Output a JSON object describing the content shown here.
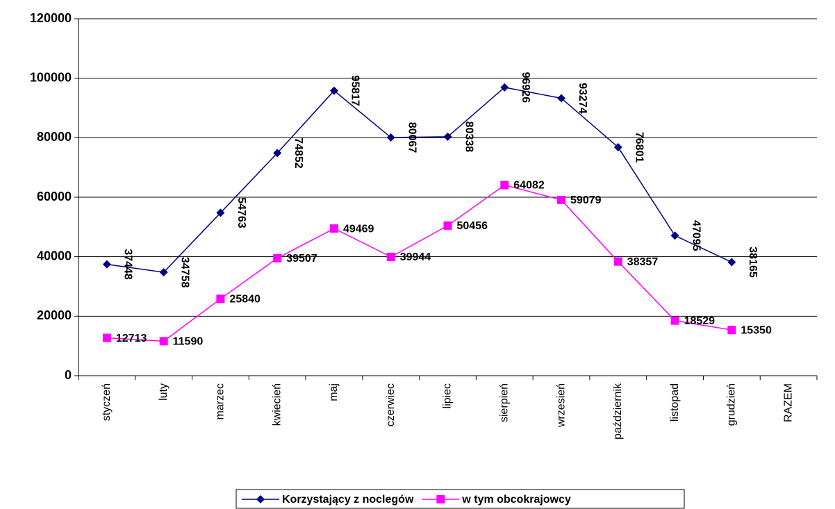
{
  "chart_data": {
    "type": "line",
    "categories": [
      "styczeń",
      "luty",
      "marzec",
      "kwiecień",
      "maj",
      "czerwiec",
      "lipiec",
      "sierpień",
      "wrzesień",
      "październik",
      "listopad",
      "grudzień",
      "RAZEM"
    ],
    "series": [
      {
        "name": "Korzystający z noclegów",
        "color": "#000080",
        "marker": "diamond",
        "values": [
          37448,
          34758,
          54763,
          74852,
          95817,
          80067,
          80338,
          96926,
          93274,
          76801,
          47095,
          38165,
          null
        ]
      },
      {
        "name": "w tym obcokrajowcy",
        "color": "#ff00ff",
        "marker": "square",
        "values": [
          12713,
          11590,
          25840,
          39507,
          49469,
          39944,
          50456,
          64082,
          59079,
          38357,
          18529,
          15350,
          null
        ]
      }
    ],
    "ylim": [
      0,
      120000
    ],
    "yticks": [
      0,
      20000,
      40000,
      60000,
      80000,
      100000,
      120000
    ],
    "grid": true,
    "legend": "bottom"
  }
}
